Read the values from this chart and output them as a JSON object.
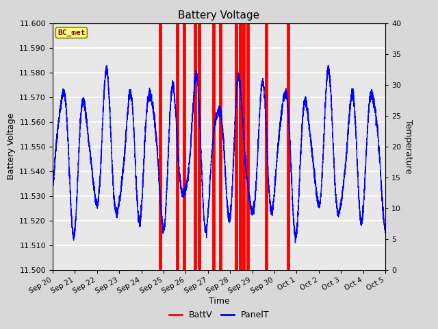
{
  "title": "Battery Voltage",
  "xlabel": "Time",
  "ylabel_left": "Battery Voltage",
  "ylabel_right": "Temperature",
  "ylim_left": [
    11.5,
    11.6
  ],
  "ylim_right": [
    0,
    40
  ],
  "bg_color": "#d8d8d8",
  "plot_bg_color": "#e8e8e8",
  "grid_color": "white",
  "bc_met_label": "BC_met",
  "bc_met_color": "#ffff80",
  "bc_met_border": "#808000",
  "bc_met_text_color": "#800000",
  "battv_color": "red",
  "panelt_color": "blue",
  "red_bar_positions": [
    4.85,
    5.62,
    5.92,
    6.42,
    6.62,
    7.25,
    7.55,
    8.28,
    8.45,
    8.62,
    8.78,
    9.62,
    10.62
  ],
  "red_bar_width": 0.06,
  "x_tick_labels": [
    "Sep 20",
    "Sep 21",
    "Sep 22",
    "Sep 23",
    "Sep 24",
    "Sep 25",
    "Sep 26",
    "Sep 27",
    "Sep 28",
    "Sep 29",
    "Sep 30",
    "Oct 1",
    "Oct 2",
    "Oct 3",
    "Oct 4",
    "Oct 5"
  ],
  "x_tick_positions": [
    0,
    1,
    2,
    3,
    4,
    5,
    6,
    7,
    8,
    9,
    10,
    11,
    12,
    13,
    14,
    15
  ],
  "xlim": [
    0,
    15
  ],
  "y_ticks": [
    11.5,
    11.51,
    11.52,
    11.53,
    11.54,
    11.55,
    11.56,
    11.57,
    11.58,
    11.59,
    11.6
  ],
  "y2_ticks": [
    0,
    5,
    10,
    15,
    20,
    25,
    30,
    35,
    40
  ]
}
